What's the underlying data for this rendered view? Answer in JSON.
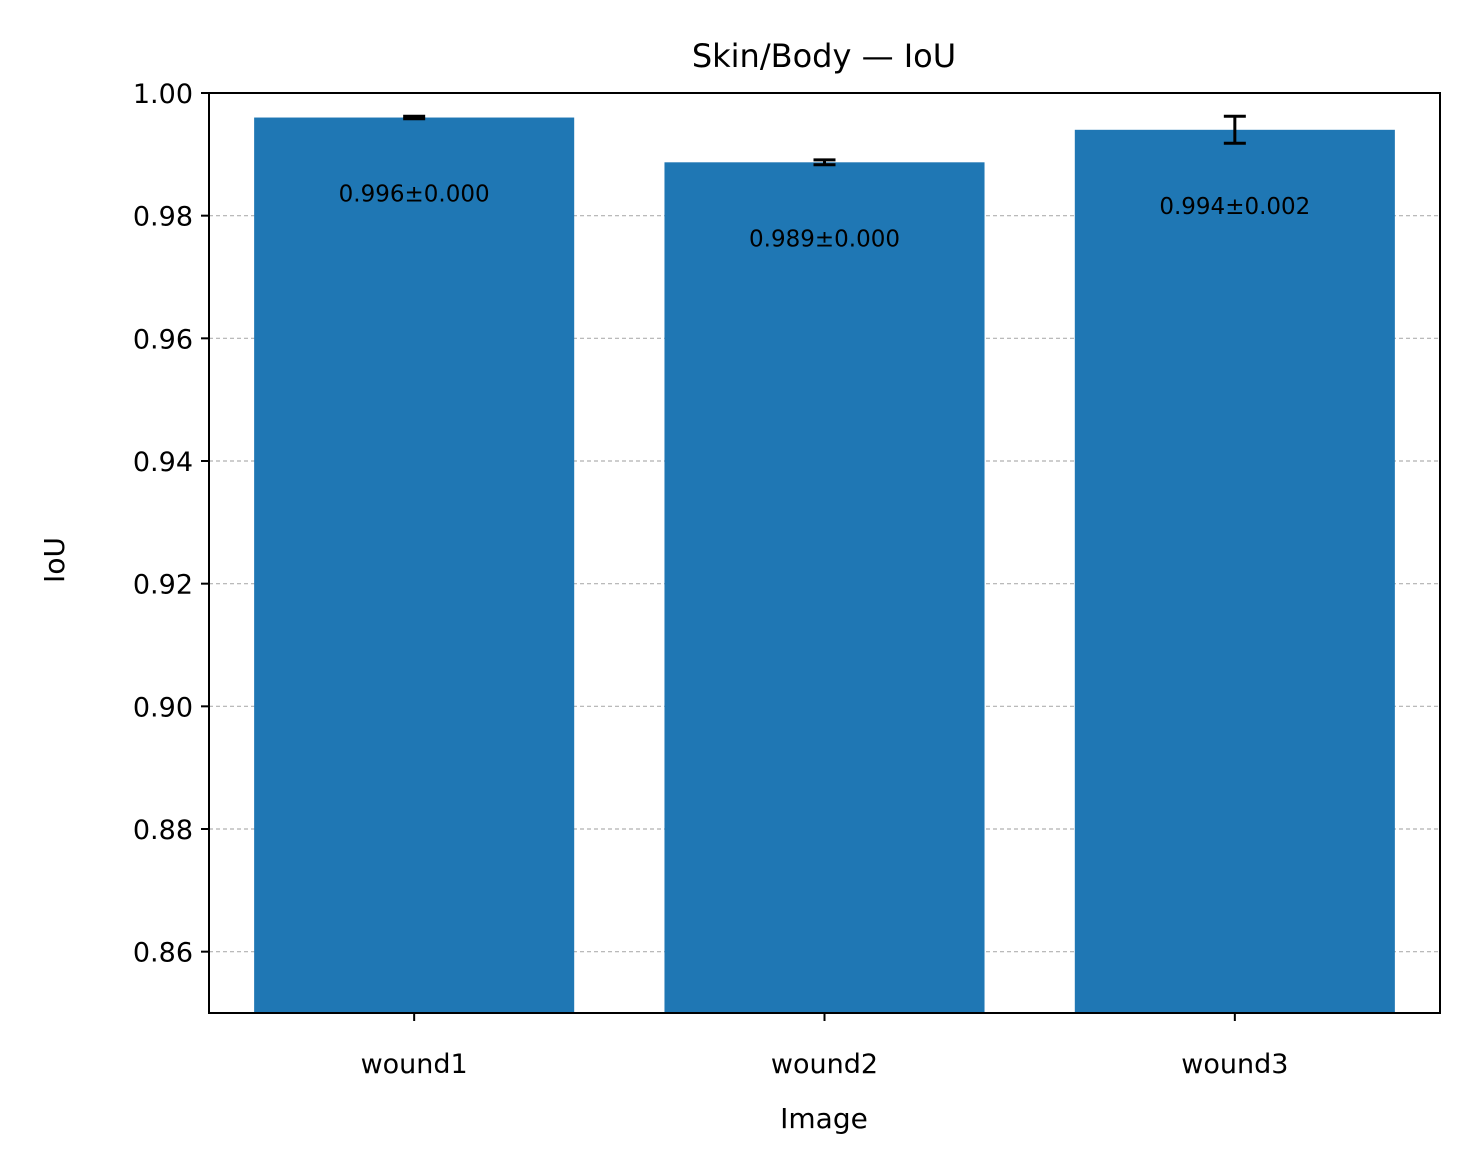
{
  "chart_data": {
    "type": "bar",
    "title": "Skin/Body — IoU",
    "xlabel": "Image",
    "ylabel": "IoU",
    "categories": [
      "wound1",
      "wound2",
      "wound3"
    ],
    "values": [
      0.996,
      0.9887,
      0.994
    ],
    "errors": [
      0.0002,
      0.0004,
      0.0022
    ],
    "data_labels": [
      "0.996±0.000",
      "0.989±0.000",
      "0.994±0.002"
    ],
    "ylim": [
      0.85,
      1.0
    ],
    "yticks": [
      0.86,
      0.88,
      0.9,
      0.92,
      0.94,
      0.96,
      0.98,
      1.0
    ],
    "ytick_labels": [
      "0.86",
      "0.88",
      "0.90",
      "0.92",
      "0.94",
      "0.96",
      "0.98",
      "1.00"
    ],
    "grid": "y",
    "bar_color": "#1f77b4",
    "error_color": "#000000"
  }
}
